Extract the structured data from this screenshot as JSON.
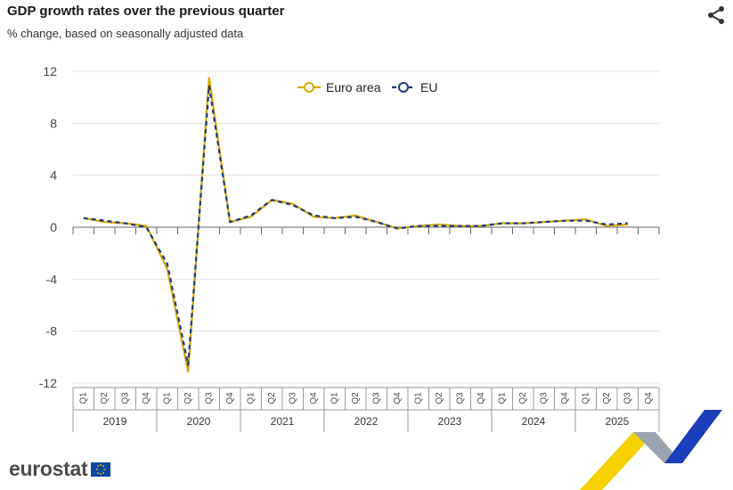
{
  "header": {
    "title": "GDP growth rates over the previous quarter",
    "subtitle": "% change, based on seasonally adjusted data",
    "share_icon": "share-icon"
  },
  "footer": {
    "logo_text": "eurostat",
    "flag_icon": "eu-flag-icon"
  },
  "colors": {
    "euro_area": "#d4a900",
    "eu": "#1f3a7a",
    "grid": "#e3e3e3",
    "axis": "#888888"
  },
  "chart_data": {
    "type": "line",
    "title": "GDP growth rates over the previous quarter",
    "subtitle": "% change, based on seasonally adjusted data",
    "xlabel": "",
    "ylabel": "",
    "ylim": [
      -12,
      12
    ],
    "yticks": [
      12,
      8,
      4,
      0,
      -4,
      -8,
      -12
    ],
    "grid": true,
    "legend_position": "top-center",
    "quarters": [
      "Q1",
      "Q2",
      "Q3",
      "Q4",
      "Q1",
      "Q2",
      "Q3",
      "Q4",
      "Q1",
      "Q2",
      "Q3",
      "Q4",
      "Q1",
      "Q2",
      "Q3",
      "Q4",
      "Q1",
      "Q2",
      "Q3",
      "Q4",
      "Q1",
      "Q2",
      "Q3",
      "Q4",
      "Q1",
      "Q2",
      "Q3",
      "Q4"
    ],
    "years": [
      "2019",
      "2020",
      "2021",
      "2022",
      "2023",
      "2024",
      "2025"
    ],
    "series": [
      {
        "name": "Euro area",
        "values": [
          0.7,
          0.4,
          0.3,
          0.1,
          -3.2,
          -11.1,
          11.5,
          0.4,
          0.8,
          2.1,
          1.8,
          0.8,
          0.7,
          0.9,
          0.4,
          -0.1,
          0.1,
          0.2,
          0.1,
          0.1,
          0.3,
          0.3,
          0.4,
          0.5,
          0.6,
          0.1,
          0.2,
          null
        ]
      },
      {
        "name": "EU",
        "values": [
          0.7,
          0.5,
          0.3,
          0.0,
          -2.8,
          -10.6,
          10.9,
          0.4,
          0.9,
          2.1,
          1.7,
          0.9,
          0.7,
          0.8,
          0.4,
          -0.1,
          0.1,
          0.1,
          0.1,
          0.1,
          0.3,
          0.3,
          0.4,
          0.5,
          0.5,
          0.2,
          0.3,
          null
        ]
      }
    ]
  }
}
